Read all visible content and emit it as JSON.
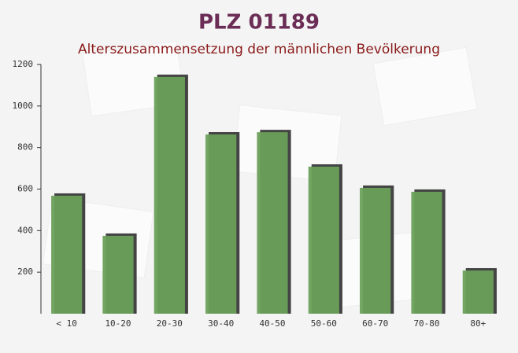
{
  "chart_data": {
    "type": "bar",
    "title": "PLZ 01189",
    "subtitle": "Alterszusammensetzung der männlichen Bevölkerung",
    "categories": [
      "< 10",
      "10-20",
      "20-30",
      "30-40",
      "40-50",
      "50-60",
      "60-70",
      "70-80",
      "80+"
    ],
    "values": [
      568,
      375,
      1140,
      863,
      874,
      708,
      606,
      587,
      208
    ],
    "color": "#6a9f5a",
    "ylim": [
      0,
      1200
    ],
    "yticks": [
      200,
      400,
      600,
      800,
      1000,
      1200
    ]
  }
}
